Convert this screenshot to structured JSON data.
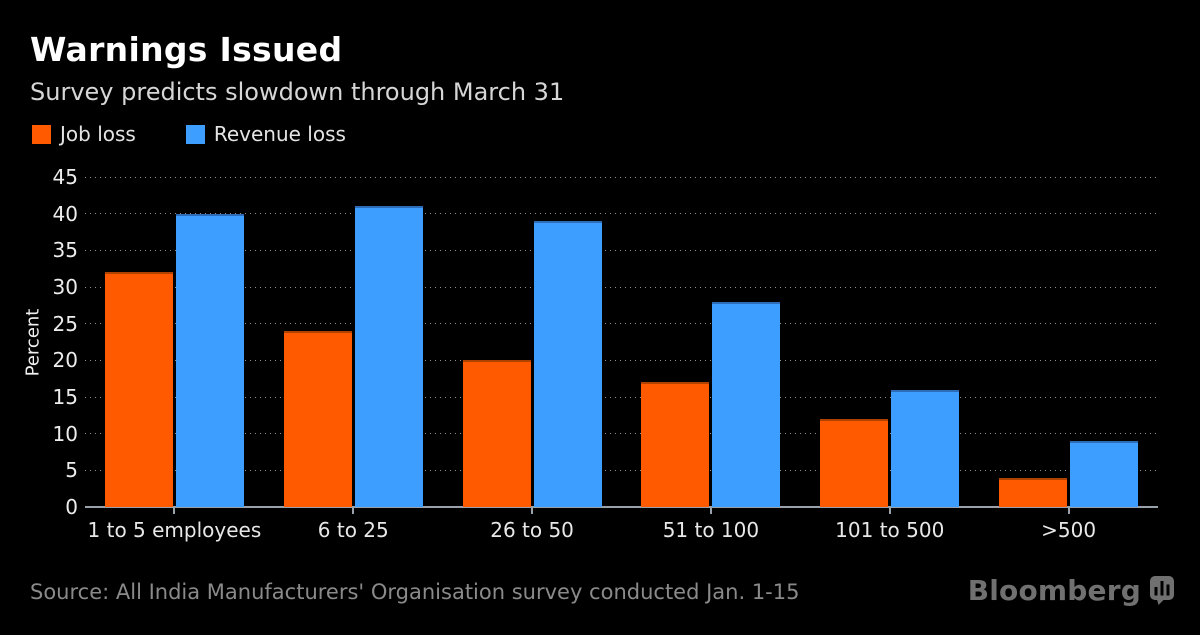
{
  "page": {
    "background": "#000000"
  },
  "header": {
    "title": "Warnings Issued",
    "subtitle": "Survey predicts slowdown through March 31"
  },
  "chart_data": {
    "type": "bar",
    "title": "Warnings Issued",
    "subtitle": "Survey predicts slowdown through March 31",
    "categories": [
      "1 to 5 employees",
      "6 to 25",
      "26 to 50",
      "51 to 100",
      "101 to 500",
      ">500"
    ],
    "series": [
      {
        "name": "Job loss",
        "color": "#FF5A00",
        "edge_color": "#b04200",
        "values": [
          32,
          24,
          20,
          17,
          12,
          4
        ]
      },
      {
        "name": "Revenue loss",
        "color": "#3E9EFF",
        "edge_color": "#2f6cb8",
        "values": [
          40,
          41,
          39,
          28,
          16,
          9
        ]
      }
    ],
    "xlabel": "",
    "ylabel": "Percent",
    "ylim": [
      0,
      45
    ],
    "ytick_step": 5,
    "yticks": [
      0,
      5,
      10,
      15,
      20,
      25,
      30,
      35,
      40,
      45
    ],
    "grid": "horizontal-dotted",
    "legend_position": "top-left",
    "background": "#000000"
  },
  "footer": {
    "source": "Source: All India Manufacturers' Organisation survey conducted Jan. 1-15",
    "brand": "Bloomberg",
    "brand_icon": "bloomberg-chart-bubble-icon"
  }
}
